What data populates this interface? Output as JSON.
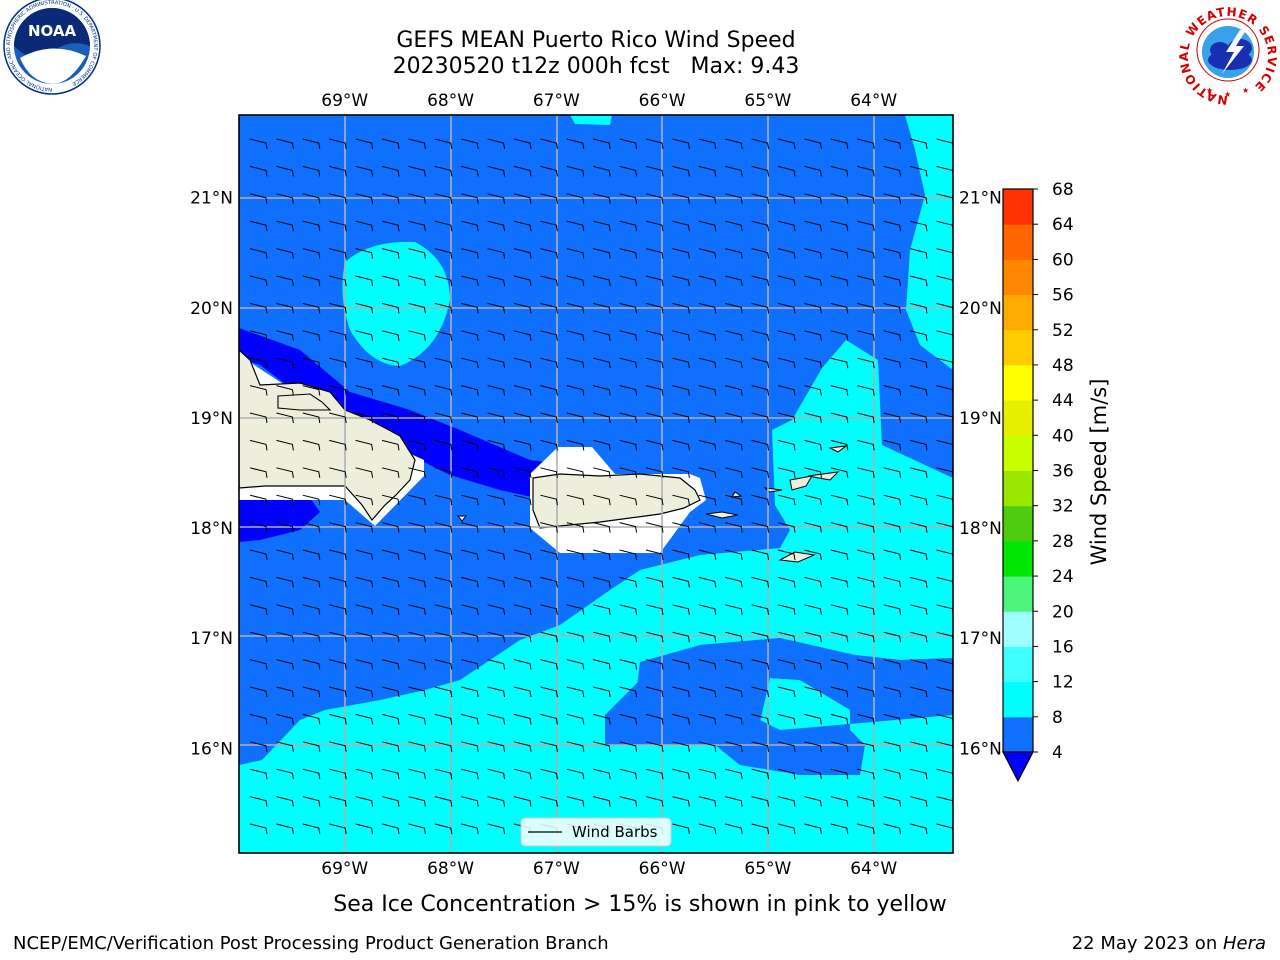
{
  "title_line1": "GEFS MEAN Puerto Rico Wind Speed",
  "title_line2": "20230520 t12z 000h fcst   Max: 9.43",
  "caption": "Sea Ice Concentration > 15% is shown in pink to yellow",
  "credit_left": "NCEP/EMC/Verification Post Processing Product Generation Branch",
  "credit_date": "22 May 2023 on ",
  "credit_machine": "Hera",
  "logos": {
    "left": {
      "name": "noaa-logo",
      "text": "NOAA",
      "ring_text": "NATIONAL OCEANIC AND ATMOSPHERIC ADMINISTRATION · U.S. DEPARTMENT OF COMMERCE"
    },
    "right": {
      "name": "nws-logo",
      "ring_text": "NATIONAL WEATHER SERVICE"
    }
  },
  "map": {
    "lon_labels": [
      "69°W",
      "68°W",
      "67°W",
      "66°W",
      "65°W",
      "64°W"
    ],
    "lat_labels": [
      "21°N",
      "20°N",
      "19°N",
      "18°N",
      "17°N",
      "16°N"
    ],
    "lon_values": [
      -69,
      -68,
      -67,
      -66,
      -65,
      -64
    ],
    "lat_values": [
      21,
      20,
      19,
      18,
      17,
      16
    ],
    "lon_range": [
      -70,
      -63.25
    ],
    "lat_range": [
      15.05,
      21.75
    ],
    "legend_label": "Wind Barbs",
    "colors": {
      "ocean_4_8": "#0f6fff",
      "band_0_4": "#0000ff",
      "band_8_12": "#00ffff",
      "land": "#eeeedc",
      "grid": "#b0b0b0"
    }
  },
  "colorbar": {
    "label": "Wind Speed [m/s]",
    "ticks": [
      "4",
      "8",
      "12",
      "16",
      "20",
      "24",
      "28",
      "32",
      "36",
      "40",
      "44",
      "48",
      "52",
      "56",
      "60",
      "64",
      "68"
    ],
    "colors": [
      "#0f6fff",
      "#00ffff",
      "#40ffff",
      "#9fffff",
      "#4cf57a",
      "#00e600",
      "#4fcc10",
      "#99e600",
      "#c8ff00",
      "#e6f000",
      "#ffff00",
      "#ffcc00",
      "#ffaa00",
      "#ff8800",
      "#ff6600",
      "#ff3300"
    ],
    "extend_color": "#0000ff"
  },
  "chart_data": {
    "type": "heatmap",
    "title": "GEFS MEAN Puerto Rico Wind Speed",
    "subtitle": "20230520 t12z 000h fcst   Max: 9.43",
    "variable_label": "Wind Speed [m/s]",
    "color_levels": [
      4,
      8,
      12,
      16,
      20,
      24,
      28,
      32,
      36,
      40,
      44,
      48,
      52,
      56,
      60,
      64,
      68
    ],
    "max_value": 9.43,
    "x_ticks": [
      "69°W",
      "68°W",
      "67°W",
      "66°W",
      "65°W",
      "64°W"
    ],
    "y_ticks": [
      "21°N",
      "20°N",
      "19°N",
      "18°N",
      "17°N",
      "16°N"
    ],
    "legend": [
      "Wind Barbs"
    ],
    "grid": true
  }
}
